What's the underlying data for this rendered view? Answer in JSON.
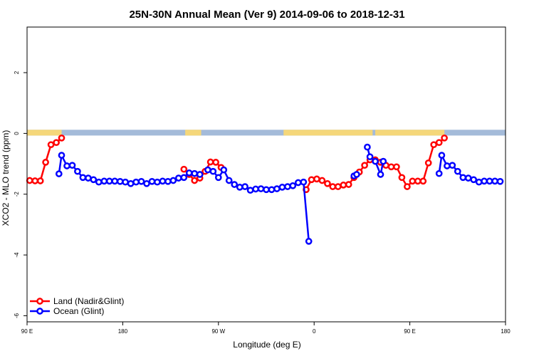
{
  "chart_data": {
    "type": "line",
    "title": "25N-30N Annual Mean (Ver 9)   2014-09-06 to 2018-12-31",
    "xlabel": "Longitude (deg E)",
    "ylabel": "XCO2 - MLO trend (ppm)",
    "xlim": [
      90,
      450
    ],
    "ylim": [
      -6.2,
      3.5
    ],
    "x_ticks": [
      {
        "value": 90,
        "label": "90 E"
      },
      {
        "value": 162,
        "label": "180"
      },
      {
        "value": 234,
        "label": "90 W"
      },
      {
        "value": 306,
        "label": "0"
      },
      {
        "value": 378,
        "label": "90 E"
      },
      {
        "value": 450,
        "label": "180"
      }
    ],
    "y_ticks": [
      {
        "value": -6,
        "label": "-6"
      },
      {
        "value": -4,
        "label": "-4"
      },
      {
        "value": -2,
        "label": "-2"
      },
      {
        "value": 0,
        "label": "0"
      },
      {
        "value": 2,
        "label": "2"
      }
    ],
    "legend": {
      "position": "bottom-left"
    },
    "colors": {
      "land": "#ff0000",
      "ocean": "#0000ff",
      "land_mask": "#f5d77a",
      "ocean_mask": "#a4bbd9"
    },
    "series": [
      {
        "name": "Land (Nadir&Glint)",
        "color": "#ff0000",
        "segments": [
          [
            [
              92,
              -1.55
            ],
            [
              96,
              -1.56
            ],
            [
              100,
              -1.56
            ],
            [
              104,
              -0.95
            ],
            [
              108,
              -0.37
            ],
            [
              112,
              -0.3
            ],
            [
              116,
              -0.15
            ]
          ],
          [
            [
              208,
              -1.18
            ],
            [
              212,
              -1.35
            ],
            [
              216,
              -1.55
            ],
            [
              220,
              -1.47
            ],
            [
              224,
              -1.25
            ],
            [
              228,
              -0.94
            ],
            [
              232,
              -0.95
            ],
            [
              236,
              -1.12
            ]
          ],
          [
            [
              300,
              -1.85
            ],
            [
              304,
              -1.52
            ],
            [
              308,
              -1.5
            ],
            [
              312,
              -1.55
            ],
            [
              316,
              -1.65
            ],
            [
              320,
              -1.75
            ],
            [
              324,
              -1.75
            ],
            [
              328,
              -1.7
            ],
            [
              332,
              -1.68
            ],
            [
              336,
              -1.45
            ],
            [
              340,
              -1.27
            ],
            [
              344,
              -1.05
            ],
            [
              348,
              -0.87
            ],
            [
              352,
              -0.87
            ],
            [
              356,
              -0.95
            ],
            [
              360,
              -1.05
            ],
            [
              364,
              -1.1
            ],
            [
              368,
              -1.1
            ],
            [
              372,
              -1.45
            ],
            [
              376,
              -1.75
            ],
            [
              380,
              -1.57
            ],
            [
              384,
              -1.57
            ],
            [
              388,
              -1.57
            ],
            [
              392,
              -0.97
            ],
            [
              396,
              -0.37
            ],
            [
              400,
              -0.3
            ],
            [
              404,
              -0.15
            ]
          ]
        ]
      },
      {
        "name": "Ocean (Glint)",
        "color": "#0000ff",
        "segments": [
          [
            [
              114,
              -1.33
            ],
            [
              116,
              -0.72
            ],
            [
              120,
              -1.07
            ],
            [
              124,
              -1.05
            ],
            [
              128,
              -1.25
            ],
            [
              132,
              -1.45
            ],
            [
              136,
              -1.47
            ],
            [
              140,
              -1.52
            ],
            [
              144,
              -1.6
            ],
            [
              148,
              -1.57
            ],
            [
              152,
              -1.57
            ],
            [
              156,
              -1.57
            ],
            [
              160,
              -1.58
            ],
            [
              164,
              -1.6
            ],
            [
              168,
              -1.65
            ],
            [
              172,
              -1.6
            ],
            [
              176,
              -1.58
            ],
            [
              180,
              -1.65
            ],
            [
              184,
              -1.58
            ],
            [
              188,
              -1.6
            ],
            [
              192,
              -1.57
            ],
            [
              196,
              -1.58
            ],
            [
              200,
              -1.55
            ],
            [
              204,
              -1.47
            ],
            [
              208,
              -1.45
            ],
            [
              212,
              -1.3
            ],
            [
              216,
              -1.32
            ],
            [
              220,
              -1.35
            ]
          ],
          [
            [
              226,
              -1.2
            ],
            [
              230,
              -1.25
            ],
            [
              234,
              -1.45
            ],
            [
              238,
              -1.2
            ],
            [
              242,
              -1.55
            ],
            [
              246,
              -1.68
            ],
            [
              250,
              -1.77
            ],
            [
              254,
              -1.75
            ],
            [
              258,
              -1.87
            ],
            [
              262,
              -1.83
            ],
            [
              266,
              -1.82
            ],
            [
              270,
              -1.85
            ],
            [
              274,
              -1.85
            ],
            [
              278,
              -1.82
            ],
            [
              282,
              -1.77
            ],
            [
              286,
              -1.75
            ],
            [
              290,
              -1.72
            ],
            [
              294,
              -1.62
            ],
            [
              298,
              -1.6
            ],
            [
              302,
              -3.55
            ]
          ],
          [
            [
              336,
              -1.4
            ],
            [
              338,
              -1.35
            ]
          ],
          [
            [
              346,
              -0.45
            ],
            [
              348,
              -0.77
            ],
            [
              352,
              -0.92
            ],
            [
              356,
              -1.35
            ],
            [
              358,
              -0.92
            ]
          ],
          [
            [
              400,
              -1.32
            ],
            [
              402,
              -0.72
            ],
            [
              406,
              -1.07
            ],
            [
              410,
              -1.05
            ],
            [
              414,
              -1.25
            ],
            [
              418,
              -1.45
            ],
            [
              422,
              -1.47
            ],
            [
              426,
              -1.52
            ],
            [
              430,
              -1.6
            ],
            [
              434,
              -1.57
            ],
            [
              438,
              -1.57
            ],
            [
              442,
              -1.57
            ],
            [
              446,
              -1.58
            ]
          ]
        ]
      }
    ],
    "land_ocean_mask": {
      "y_range": [
        -0.07,
        0.12
      ],
      "land_ranges": [
        [
          90,
          116
        ],
        [
          209,
          221
        ],
        [
          283,
          350
        ],
        [
          352,
          404
        ]
      ]
    }
  }
}
